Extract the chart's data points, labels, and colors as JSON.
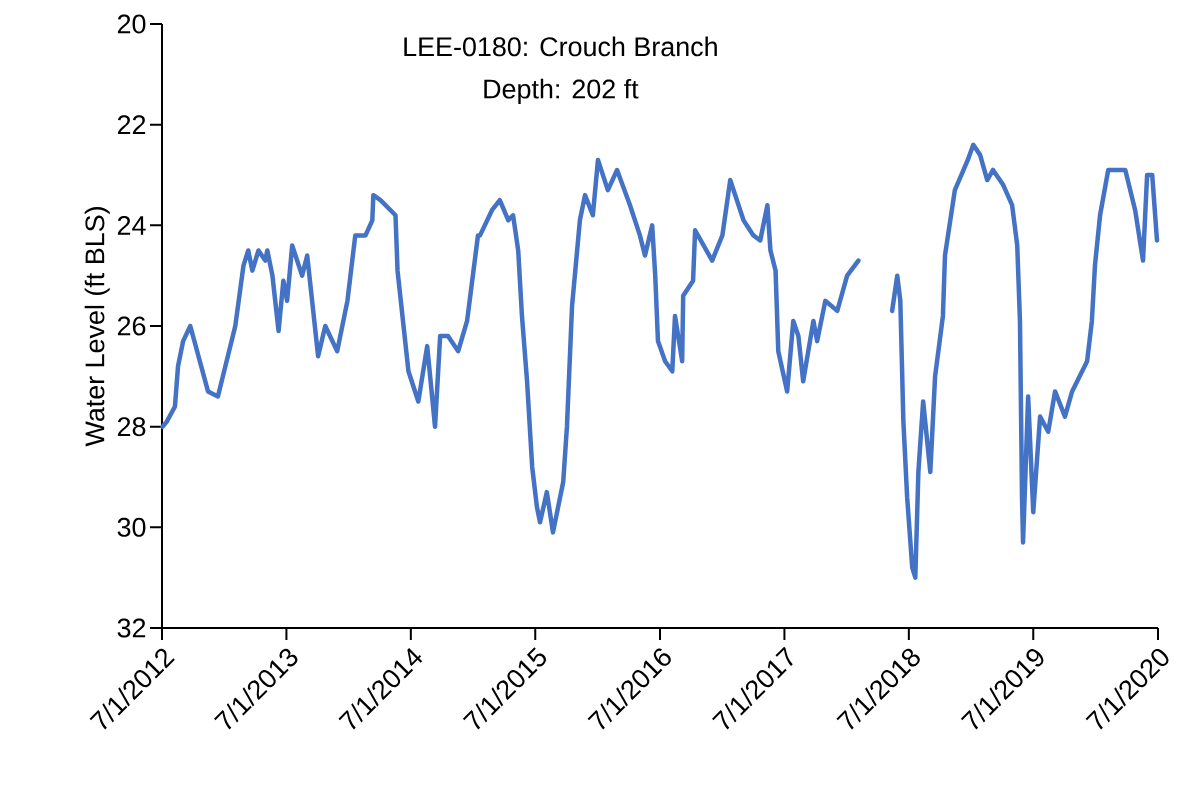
{
  "chart_data": {
    "type": "line",
    "title": "LEE-0180: Crouch Branch",
    "subtitle": "Depth: 202 ft",
    "ylabel": "Water Level (ft BLS)",
    "x": [
      "2012-07-03",
      "2012-07-15",
      "2012-08-08",
      "2012-08-17",
      "2012-09-01",
      "2012-09-22",
      "2012-11-13",
      "2012-12-12",
      "2013-02-01",
      "2013-02-25",
      "2013-03-11",
      "2013-03-23",
      "2013-04-10",
      "2013-04-30",
      "2013-05-06",
      "2013-05-21",
      "2013-06-08",
      "2013-06-22",
      "2013-07-03",
      "2013-07-18",
      "2013-08-16",
      "2013-08-31",
      "2013-10-02",
      "2013-10-23",
      "2013-11-27",
      "2013-12-27",
      "2014-01-19",
      "2014-02-18",
      "2014-03-10",
      "2014-03-13",
      "2014-04-03",
      "2014-05-17",
      "2014-05-23",
      "2014-06-24",
      "2014-07-23",
      "2014-08-18",
      "2014-09-10",
      "2014-09-25",
      "2014-10-18",
      "2014-11-17",
      "2014-12-13",
      "2015-01-14",
      "2015-01-20",
      "2015-02-24",
      "2015-03-19",
      "2015-04-13",
      "2015-04-27",
      "2015-05-12",
      "2015-05-23",
      "2015-06-07",
      "2015-06-22",
      "2015-07-06",
      "2015-07-15",
      "2015-08-04",
      "2015-08-22",
      "2015-09-21",
      "2015-10-02",
      "2015-10-17",
      "2015-11-09",
      "2015-11-24",
      "2015-12-17",
      "2016-01-01",
      "2016-01-30",
      "2016-02-26",
      "2016-04-04",
      "2016-05-03",
      "2016-05-18",
      "2016-06-08",
      "2016-06-17",
      "2016-06-25",
      "2016-07-16",
      "2016-08-06",
      "2016-08-14",
      "2016-09-04",
      "2016-09-07",
      "2016-10-06",
      "2016-10-12",
      "2016-12-01",
      "2016-12-31",
      "2017-01-23",
      "2017-03-03",
      "2017-04-01",
      "2017-04-21",
      "2017-05-12",
      "2017-05-21",
      "2017-06-05",
      "2017-06-13",
      "2017-07-09",
      "2017-07-27",
      "2017-08-11",
      "2017-08-25",
      "2017-09-24",
      "2017-10-05",
      "2017-10-29",
      "2017-12-03",
      "2018-01-01",
      "2018-02-03",
      "2018-03-20",
      "2018-05-13",
      "2018-05-28",
      "2018-06-06",
      "2018-06-15",
      "2018-06-26",
      "2018-07-11",
      "2018-07-20",
      "2018-07-29",
      "2018-08-12",
      "2018-09-02",
      "2018-09-16",
      "2018-10-09",
      "2018-10-15",
      "2018-11-13",
      "2018-12-21",
      "2019-01-06",
      "2019-01-26",
      "2019-02-16",
      "2019-03-05",
      "2019-04-04",
      "2019-04-30",
      "2019-05-15",
      "2019-05-23",
      "2019-05-29",
      "2019-06-01",
      "2019-06-16",
      "2019-07-01",
      "2019-07-21",
      "2019-08-14",
      "2019-09-03",
      "2019-10-02",
      "2019-10-23",
      "2019-12-06",
      "2019-12-20",
      "2019-12-29",
      "2020-01-13",
      "2020-02-06",
      "2020-03-27",
      "2020-04-25",
      "2020-05-18",
      "2020-05-30",
      "2020-06-14",
      "2020-06-28"
    ],
    "series": [
      {
        "color": "#4472c4",
        "values": [
          28.0,
          27.9,
          27.6,
          26.8,
          26.3,
          26.0,
          27.3,
          27.4,
          26.0,
          24.8,
          24.5,
          24.9,
          24.5,
          24.7,
          24.5,
          25.0,
          26.1,
          25.1,
          25.5,
          24.4,
          25.0,
          24.6,
          26.6,
          26.0,
          26.5,
          25.5,
          24.2,
          24.2,
          23.9,
          23.4,
          23.5,
          23.8,
          24.9,
          26.9,
          27.5,
          26.4,
          28.0,
          26.2,
          26.2,
          26.5,
          25.9,
          24.2,
          24.2,
          23.7,
          23.5,
          23.9,
          23.8,
          24.5,
          25.8,
          27.1,
          28.8,
          29.6,
          29.9,
          29.3,
          30.1,
          29.1,
          28.0,
          25.6,
          23.9,
          23.4,
          23.8,
          22.7,
          23.3,
          22.9,
          23.6,
          24.2,
          24.6,
          24.0,
          25.0,
          26.3,
          26.7,
          26.9,
          25.8,
          26.7,
          25.4,
          25.1,
          24.1,
          24.7,
          24.2,
          23.1,
          23.9,
          24.2,
          24.3,
          23.6,
          24.5,
          24.9,
          26.5,
          27.3,
          25.9,
          26.2,
          27.1,
          25.9,
          26.3,
          25.5,
          25.7,
          25.0,
          24.7,
          null,
          25.7,
          25.0,
          25.5,
          27.9,
          29.4,
          30.8,
          31.0,
          28.9,
          27.5,
          28.9,
          27.0,
          25.8,
          24.6,
          23.3,
          22.7,
          22.4,
          22.6,
          23.1,
          22.9,
          23.2,
          23.6,
          24.4,
          25.9,
          29.4,
          30.3,
          27.4,
          29.7,
          27.8,
          28.1,
          27.3,
          27.8,
          27.3,
          26.7,
          25.9,
          24.8,
          23.8,
          22.9,
          22.9,
          23.7,
          24.7,
          23.0,
          23.0,
          24.3
        ]
      }
    ],
    "xlim": [
      "2012-07-01",
      "2020-07-01"
    ],
    "xticks": [
      {
        "value": "2012-07-01",
        "label": "7/1/2012"
      },
      {
        "value": "2013-07-01",
        "label": "7/1/2013"
      },
      {
        "value": "2014-07-01",
        "label": "7/1/2014"
      },
      {
        "value": "2015-07-01",
        "label": "7/1/2015"
      },
      {
        "value": "2016-07-01",
        "label": "7/1/2016"
      },
      {
        "value": "2017-07-01",
        "label": "7/1/2017"
      },
      {
        "value": "2018-07-01",
        "label": "7/1/2018"
      },
      {
        "value": "2019-07-01",
        "label": "7/1/2019"
      },
      {
        "value": "2020-07-01",
        "label": "7/1/2020"
      }
    ],
    "ylim": [
      32,
      20
    ],
    "yticks": [
      20,
      22,
      24,
      26,
      28,
      30,
      32
    ],
    "grid": false,
    "legend": false,
    "marker": "none",
    "line_style": "solid"
  }
}
